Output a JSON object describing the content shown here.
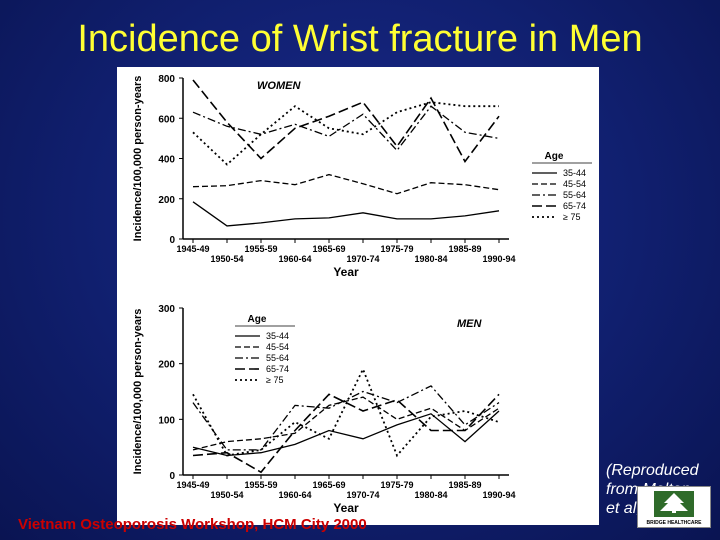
{
  "slide": {
    "title": "Incidence of Wrist fracture in Men",
    "footer": "Vietnam Osteoporosis Workshop, HCM City 2000",
    "credit_lines": [
      "(Reproduced",
      "from Melton",
      "et al, 1998)"
    ],
    "logo_text": "BRIDGE HEALTHCARE"
  },
  "chart_data": [
    {
      "type": "line",
      "title": "WOMEN",
      "xlabel": "Year",
      "ylabel": "Incidence/100,000 person-years",
      "categories": [
        "1945-49",
        "1950-54",
        "1955-59",
        "1960-64",
        "1965-69",
        "1970-74",
        "1975-79",
        "1980-84",
        "1985-89",
        "1990-94"
      ],
      "ylim": [
        0,
        800
      ],
      "yticks": [
        0,
        200,
        400,
        600,
        800
      ],
      "legend_title": "Age",
      "legend_position": "right",
      "series": [
        {
          "name": "35-44",
          "style": "solid",
          "values": [
            185,
            65,
            80,
            100,
            105,
            130,
            100,
            100,
            115,
            140
          ]
        },
        {
          "name": "45-54",
          "style": "dash",
          "values": [
            260,
            265,
            290,
            270,
            320,
            275,
            225,
            280,
            270,
            245
          ]
        },
        {
          "name": "55-64",
          "style": "dashdot",
          "values": [
            630,
            560,
            520,
            570,
            510,
            620,
            440,
            660,
            530,
            500
          ]
        },
        {
          "name": "65-74",
          "style": "longdash",
          "values": [
            790,
            580,
            400,
            550,
            610,
            680,
            460,
            700,
            385,
            610
          ]
        },
        {
          "name": "≥ 75",
          "style": "dot",
          "values": [
            530,
            370,
            520,
            660,
            550,
            520,
            630,
            680,
            660,
            660
          ]
        }
      ]
    },
    {
      "type": "line",
      "title": "MEN",
      "xlabel": "Year",
      "ylabel": "Incidence/100,000 person-years",
      "categories": [
        "1945-49",
        "1950-54",
        "1955-59",
        "1960-64",
        "1965-69",
        "1970-74",
        "1975-79",
        "1980-84",
        "1985-89",
        "1990-94"
      ],
      "ylim": [
        0,
        300
      ],
      "yticks": [
        0,
        100,
        200,
        300
      ],
      "legend_title": "Age",
      "legend_position": "top-left",
      "series": [
        {
          "name": "35-44",
          "style": "solid",
          "values": [
            50,
            35,
            40,
            55,
            80,
            65,
            90,
            110,
            60,
            115
          ]
        },
        {
          "name": "45-54",
          "style": "dash",
          "values": [
            45,
            60,
            65,
            75,
            125,
            140,
            100,
            120,
            80,
            120
          ]
        },
        {
          "name": "55-64",
          "style": "dashdot",
          "values": [
            130,
            45,
            45,
            125,
            120,
            150,
            130,
            160,
            90,
            130
          ]
        },
        {
          "name": "65-74",
          "style": "longdash",
          "values": [
            35,
            40,
            5,
            80,
            145,
            115,
            135,
            80,
            80,
            145
          ]
        },
        {
          "name": "≥ 75",
          "style": "dot",
          "values": [
            145,
            35,
            45,
            95,
            65,
            190,
            35,
            105,
            115,
            95
          ]
        }
      ]
    }
  ]
}
